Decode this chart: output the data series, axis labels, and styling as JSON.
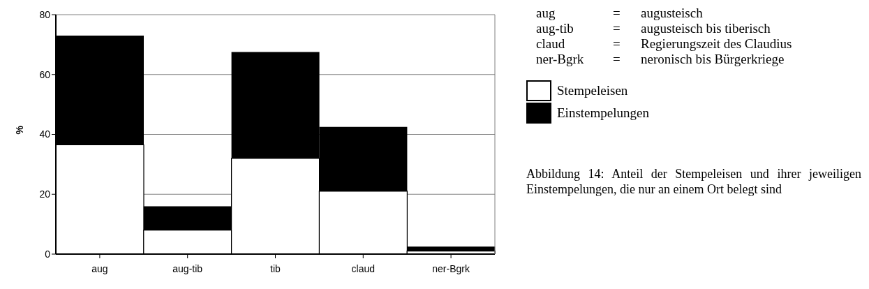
{
  "chart_data": {
    "type": "bar",
    "stacked": true,
    "ylabel": "%",
    "categories": [
      "aug",
      "aug-tib",
      "tib",
      "claud",
      "ner-Bgrk"
    ],
    "series": [
      {
        "name": "Stempeleisen",
        "color": "#ffffff",
        "values": [
          36.5,
          8,
          32,
          21,
          1
        ]
      },
      {
        "name": "Einstempelungen",
        "color": "#000000",
        "values": [
          36.5,
          8,
          35.5,
          21.5,
          1.5
        ]
      }
    ],
    "ylim": [
      0,
      80
    ],
    "yticks": [
      0,
      20,
      40,
      60,
      80
    ],
    "grid": "y",
    "legend": "right",
    "annotations": [
      "aug = augusteisch",
      "aug-tib = augusteisch bis tiberisch",
      "claud = Regierungszeit des Claudius",
      "ner-Bgrk = neronisch bis Bürgerkriege",
      "Abbildung 14: Anteil der Stempeleisen und ihrer jeweiligen Einstempelungen, die nur an einem Ort belegt sind"
    ]
  }
}
